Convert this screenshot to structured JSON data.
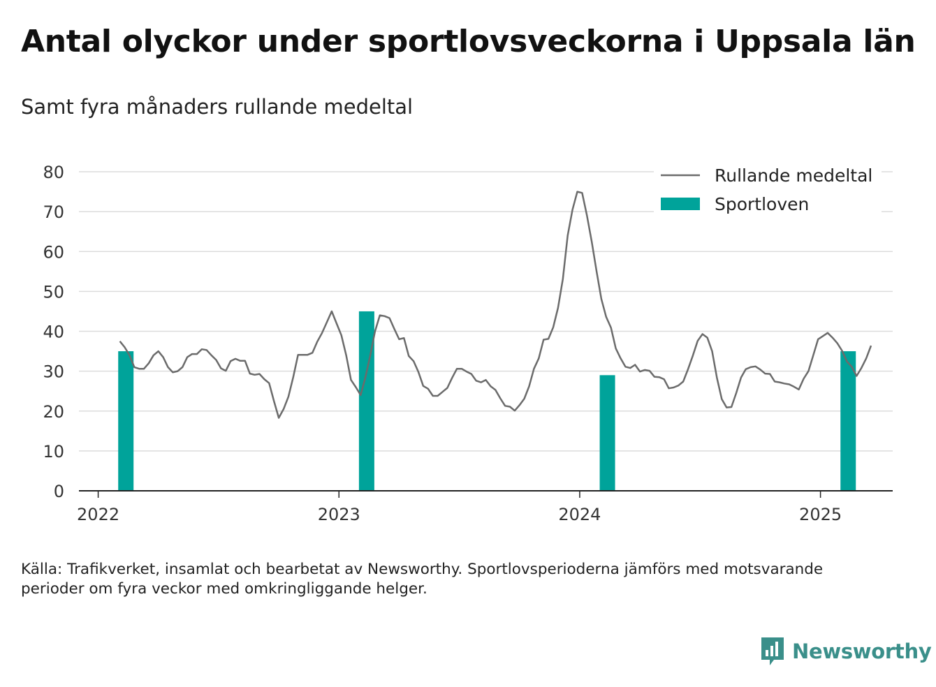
{
  "title": "Antal olyckor under sportlovsveckorna i Uppsala län",
  "subtitle": "Samt fyra månaders rullande medeltal",
  "source": "Källa: Trafikverket, insamlat och bearbetat av Newsworthy. Sportlovsperioderna jämförs med motsvarande perioder om fyra veckor med omkringliggande helger.",
  "logo": {
    "text": "Newsworthy",
    "color": "#3a8f8a"
  },
  "chart_data": {
    "type": "bar+line",
    "ylim": [
      0,
      80
    ],
    "yticks": [
      0,
      10,
      20,
      30,
      40,
      50,
      60,
      70,
      80
    ],
    "xlim": [
      2021.92,
      2025.3
    ],
    "xticks": [
      {
        "value": 2022,
        "label": "2022"
      },
      {
        "value": 2023,
        "label": "2023"
      },
      {
        "value": 2024,
        "label": "2024"
      },
      {
        "value": 2025,
        "label": "2025"
      }
    ],
    "grid": true,
    "legend_position": "top-right",
    "legend": [
      {
        "label": "Rullande medeltal",
        "type": "line",
        "color": "#6b6b6b"
      },
      {
        "label": "Sportloven",
        "type": "bar",
        "color": "#00a39a"
      }
    ],
    "bars": {
      "name": "Sportloven",
      "color": "#00a39a",
      "x": [
        2022.115,
        2023.115,
        2024.115,
        2025.115
      ],
      "values": [
        35,
        45,
        29,
        35
      ]
    },
    "line": {
      "name": "Rullande medeltal",
      "color": "#6b6b6b",
      "points": [
        [
          2022.09,
          37.5
        ],
        [
          2022.11,
          36
        ],
        [
          2022.13,
          34
        ],
        [
          2022.15,
          31
        ],
        [
          2022.17,
          30.6
        ],
        [
          2022.19,
          30.6
        ],
        [
          2022.21,
          32
        ],
        [
          2022.23,
          34
        ],
        [
          2022.25,
          35
        ],
        [
          2022.27,
          33.5
        ],
        [
          2022.29,
          31
        ],
        [
          2022.31,
          29.7
        ],
        [
          2022.33,
          30
        ],
        [
          2022.35,
          31
        ],
        [
          2022.37,
          33.5
        ],
        [
          2022.39,
          34.3
        ],
        [
          2022.41,
          34.3
        ],
        [
          2022.43,
          35.5
        ],
        [
          2022.45,
          35.3
        ],
        [
          2022.47,
          34
        ],
        [
          2022.49,
          32.8
        ],
        [
          2022.51,
          30.7
        ],
        [
          2022.53,
          30.1
        ],
        [
          2022.55,
          32.5
        ],
        [
          2022.57,
          33.1
        ],
        [
          2022.59,
          32.6
        ],
        [
          2022.61,
          32.6
        ],
        [
          2022.63,
          29.4
        ],
        [
          2022.65,
          29.1
        ],
        [
          2022.67,
          29.3
        ],
        [
          2022.69,
          28
        ],
        [
          2022.71,
          27
        ],
        [
          2022.73,
          22.5
        ],
        [
          2022.75,
          18.3
        ],
        [
          2022.77,
          20.5
        ],
        [
          2022.79,
          23.6
        ],
        [
          2022.81,
          28.5
        ],
        [
          2022.83,
          34.1
        ],
        [
          2022.85,
          34.1
        ],
        [
          2022.87,
          34.1
        ],
        [
          2022.89,
          34.6
        ],
        [
          2022.91,
          37.4
        ],
        [
          2022.93,
          39.6
        ],
        [
          2022.95,
          42.3
        ],
        [
          2022.97,
          45
        ],
        [
          2022.99,
          42
        ],
        [
          2023.01,
          39
        ],
        [
          2023.03,
          34
        ],
        [
          2023.05,
          27.8
        ],
        [
          2023.07,
          26
        ],
        [
          2023.09,
          24
        ],
        [
          2023.11,
          28.5
        ],
        [
          2023.13,
          34
        ],
        [
          2023.15,
          40
        ],
        [
          2023.17,
          44
        ],
        [
          2023.19,
          43.8
        ],
        [
          2023.21,
          43.3
        ],
        [
          2023.23,
          40.6
        ],
        [
          2023.25,
          38
        ],
        [
          2023.27,
          38.3
        ],
        [
          2023.29,
          33.8
        ],
        [
          2023.31,
          32.5
        ],
        [
          2023.33,
          29.8
        ],
        [
          2023.35,
          26.3
        ],
        [
          2023.37,
          25.6
        ],
        [
          2023.39,
          23.8
        ],
        [
          2023.41,
          23.8
        ],
        [
          2023.43,
          24.8
        ],
        [
          2023.45,
          25.8
        ],
        [
          2023.47,
          28.3
        ],
        [
          2023.49,
          30.6
        ],
        [
          2023.51,
          30.6
        ],
        [
          2023.53,
          29.9
        ],
        [
          2023.55,
          29.3
        ],
        [
          2023.57,
          27.6
        ],
        [
          2023.59,
          27.2
        ],
        [
          2023.61,
          27.8
        ],
        [
          2023.63,
          26.2
        ],
        [
          2023.65,
          25.3
        ],
        [
          2023.67,
          23.2
        ],
        [
          2023.69,
          21.3
        ],
        [
          2023.71,
          21.1
        ],
        [
          2023.73,
          20.1
        ],
        [
          2023.75,
          21.5
        ],
        [
          2023.77,
          23.1
        ],
        [
          2023.79,
          26.2
        ],
        [
          2023.81,
          30.6
        ],
        [
          2023.83,
          33.2
        ],
        [
          2023.85,
          37.9
        ],
        [
          2023.87,
          38.1
        ],
        [
          2023.89,
          41
        ],
        [
          2023.91,
          45.9
        ],
        [
          2023.93,
          53.1
        ],
        [
          2023.95,
          64
        ],
        [
          2023.97,
          70.5
        ],
        [
          2023.99,
          75
        ],
        [
          2024.01,
          74.7
        ],
        [
          2024.03,
          69
        ],
        [
          2024.05,
          62.4
        ],
        [
          2024.07,
          55
        ],
        [
          2024.09,
          48.1
        ],
        [
          2024.11,
          43.6
        ],
        [
          2024.13,
          40.9
        ],
        [
          2024.15,
          35.7
        ],
        [
          2024.17,
          33.2
        ],
        [
          2024.19,
          31.1
        ],
        [
          2024.21,
          30.8
        ],
        [
          2024.23,
          31.6
        ],
        [
          2024.25,
          29.9
        ],
        [
          2024.27,
          30.3
        ],
        [
          2024.29,
          30.1
        ],
        [
          2024.31,
          28.6
        ],
        [
          2024.33,
          28.5
        ],
        [
          2024.35,
          28
        ],
        [
          2024.37,
          25.7
        ],
        [
          2024.39,
          25.9
        ],
        [
          2024.41,
          26.4
        ],
        [
          2024.43,
          27.4
        ],
        [
          2024.45,
          30.5
        ],
        [
          2024.47,
          33.9
        ],
        [
          2024.49,
          37.6
        ],
        [
          2024.51,
          39.3
        ],
        [
          2024.53,
          38.4
        ],
        [
          2024.55,
          35
        ],
        [
          2024.57,
          28.3
        ],
        [
          2024.59,
          23
        ],
        [
          2024.61,
          20.9
        ],
        [
          2024.63,
          21
        ],
        [
          2024.65,
          24.5
        ],
        [
          2024.67,
          28.4
        ],
        [
          2024.69,
          30.5
        ],
        [
          2024.71,
          31
        ],
        [
          2024.73,
          31.2
        ],
        [
          2024.75,
          30.4
        ],
        [
          2024.77,
          29.4
        ],
        [
          2024.79,
          29.3
        ],
        [
          2024.81,
          27.4
        ],
        [
          2024.83,
          27.2
        ],
        [
          2024.85,
          26.9
        ],
        [
          2024.87,
          26.7
        ],
        [
          2024.89,
          26.1
        ],
        [
          2024.91,
          25.4
        ],
        [
          2024.93,
          28.1
        ],
        [
          2024.95,
          30
        ],
        [
          2024.97,
          34
        ],
        [
          2024.99,
          38
        ],
        [
          2025.01,
          38.8
        ],
        [
          2025.03,
          39.6
        ],
        [
          2025.05,
          38.4
        ],
        [
          2025.07,
          37
        ],
        [
          2025.09,
          35.1
        ],
        [
          2025.11,
          32.4
        ],
        [
          2025.13,
          31.1
        ],
        [
          2025.15,
          28.8
        ],
        [
          2025.17,
          30.8
        ],
        [
          2025.19,
          33.2
        ],
        [
          2025.21,
          36.4
        ]
      ]
    }
  }
}
